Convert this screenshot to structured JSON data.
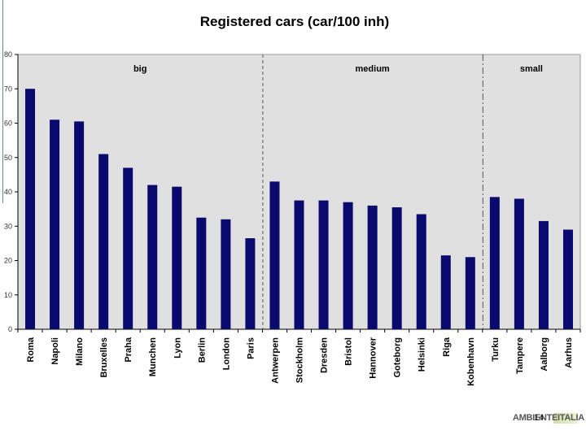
{
  "page": {
    "number": "14",
    "logo_text": "AMBIENTEITALIA"
  },
  "chart_data": {
    "type": "bar",
    "title": "Registered cars (car/100 inh)",
    "xlabel": "",
    "ylabel": "",
    "ylim": [
      0,
      80
    ],
    "yticks": [
      0,
      10,
      20,
      30,
      40,
      50,
      60,
      70,
      80
    ],
    "ytick_labels": [
      "0",
      "10",
      "20",
      "30",
      "40",
      "50",
      "60",
      "70",
      "80"
    ],
    "grid": false,
    "legend": "none",
    "categories": [
      "Roma",
      "Napoli",
      "Milano",
      "Bruxelles",
      "Praha",
      "Munchen",
      "Lyon",
      "Berlin",
      "London",
      "Paris",
      "Antwerpen",
      "Stockholm",
      "Dresden",
      "Bristol",
      "Hannover",
      "Goteborg",
      "Helsinki",
      "Riga",
      "Kobenhavn",
      "Turku",
      "Tampere",
      "Aalborg",
      "Aarhus"
    ],
    "values": [
      70,
      61,
      60.5,
      51,
      47,
      42,
      41.5,
      32.5,
      32,
      26.5,
      43,
      37.5,
      37.5,
      37,
      36,
      35.5,
      33.5,
      21.5,
      21,
      38.5,
      38,
      31.5,
      29
    ],
    "groups": [
      {
        "label": "big",
        "start": 0,
        "end": 9
      },
      {
        "label": "medium",
        "start": 10,
        "end": 18
      },
      {
        "label": "small",
        "start": 19,
        "end": 22
      }
    ],
    "colors": {
      "bar": "#0a0a6e",
      "plot_background": "#e0e0e0",
      "divider": "#555555"
    }
  }
}
